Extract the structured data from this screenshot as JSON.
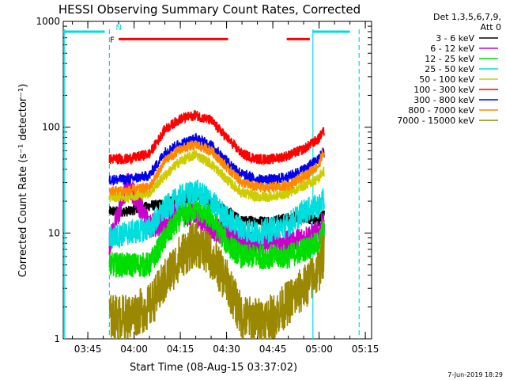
{
  "chart_data": {
    "type": "line",
    "title": "HESSI Observing Summary Count Rates, Corrected",
    "xlabel": "Start Time (08-Aug-15 03:37:02)",
    "ylabel": "Corrected Count Rate (s⁻¹ detector⁻¹)",
    "y_scale": "log",
    "ylim": [
      1,
      1000
    ],
    "xlim": [
      "03:37:02",
      "05:17:02"
    ],
    "x_ticks": [
      "03:45",
      "04:00",
      "04:15",
      "04:30",
      "04:45",
      "05:00",
      "05:15"
    ],
    "y_ticks": [
      "1",
      "10",
      "100",
      "1000"
    ],
    "legend_header": [
      "Det 1,3,5,6,7,9,",
      "Att 0"
    ],
    "legend_placement": "right",
    "grid": false,
    "footer": "7-Jun-2019 18:29",
    "data_start": "03:52:00",
    "data_end": "05:01:40",
    "x_samples": [
      "03:52",
      "03:58",
      "04:05",
      "04:10",
      "04:15",
      "04:20",
      "04:25",
      "04:30",
      "04:35",
      "04:40",
      "04:45",
      "04:50",
      "04:55",
      "05:00",
      "05:01"
    ],
    "series": [
      {
        "name": "3 - 6 keV",
        "color": "#000000",
        "values": [
          16,
          16,
          18,
          19,
          21,
          22,
          20,
          16,
          13,
          13,
          13,
          14,
          14,
          13,
          15
        ]
      },
      {
        "name": "6 - 12 keV",
        "color": "#cc00cc",
        "values": [
          8,
          30,
          12,
          12,
          16,
          14,
          11,
          10,
          8,
          8,
          8,
          8,
          9,
          10,
          12
        ]
      },
      {
        "name": "12 - 25 keV",
        "color": "#00dd00",
        "values": [
          5,
          5,
          5,
          9,
          14,
          17,
          14,
          8,
          6,
          6,
          6,
          6,
          7,
          8,
          10
        ]
      },
      {
        "name": "25 - 50 keV",
        "color": "#00dddd",
        "values": [
          9,
          10,
          11,
          17,
          22,
          25,
          20,
          14,
          11,
          10,
          11,
          12,
          16,
          18,
          20
        ]
      },
      {
        "name": "50 - 100 keV",
        "color": "#cccc00",
        "values": [
          22,
          22,
          24,
          35,
          48,
          55,
          45,
          32,
          24,
          22,
          22,
          24,
          28,
          33,
          38
        ]
      },
      {
        "name": "100 - 300 keV",
        "color": "#ff0000",
        "values": [
          50,
          50,
          56,
          95,
          120,
          130,
          115,
          80,
          56,
          50,
          50,
          54,
          62,
          78,
          90
        ]
      },
      {
        "name": "300 - 800 keV",
        "color": "#0000ee",
        "values": [
          32,
          32,
          35,
          58,
          70,
          78,
          68,
          48,
          36,
          32,
          32,
          34,
          40,
          50,
          58
        ]
      },
      {
        "name": "800 - 7000 keV",
        "color": "#ff8800",
        "values": [
          25,
          25,
          27,
          48,
          62,
          68,
          60,
          42,
          30,
          27,
          27,
          28,
          34,
          44,
          55
        ]
      },
      {
        "name": "7000 - 15000 keV",
        "color": "#998800",
        "values": [
          1.6,
          1.6,
          2.0,
          3.5,
          6.0,
          8.0,
          6.0,
          3.5,
          1.6,
          1.5,
          1.6,
          2.2,
          3.0,
          4.5,
          6.0
        ]
      }
    ],
    "flags": [
      {
        "color": "#00dddd",
        "level": 800,
        "from": "03:37:02",
        "to": "03:50:30"
      },
      {
        "color": "#ff0000",
        "level": 680,
        "from": "03:55:00",
        "to": "04:30:30",
        "label": "F"
      },
      {
        "color": "#ff0000",
        "level": 680,
        "from": "04:49:30",
        "to": "04:57:00"
      },
      {
        "color": "#00dddd",
        "level": 800,
        "from": "04:58:00",
        "to": "05:10:00"
      }
    ],
    "flag_label_n": "N",
    "markers": [
      {
        "color": "#00dddd",
        "style": "solid",
        "at": "03:37:30"
      },
      {
        "color": "#00dddd",
        "style": "dashed",
        "at": "03:52:00"
      },
      {
        "color": "#00dddd",
        "style": "solid",
        "at": "04:58:00"
      },
      {
        "color": "#00dddd",
        "style": "dashed",
        "at": "05:13:00"
      }
    ]
  }
}
